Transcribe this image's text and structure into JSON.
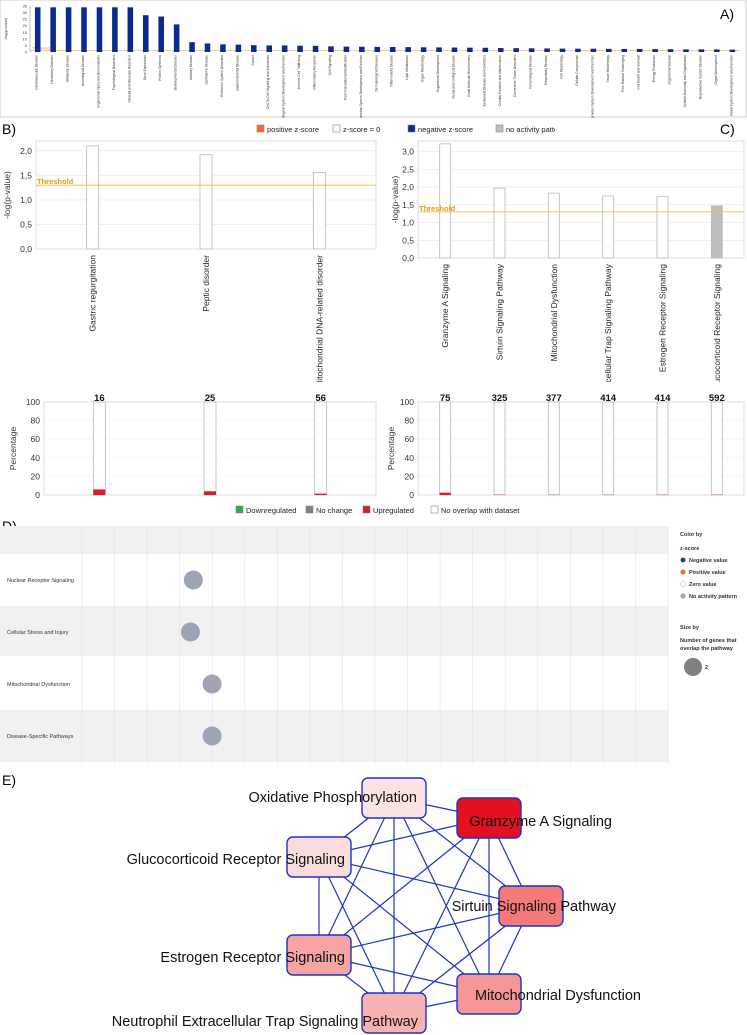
{
  "panel_labels": {
    "a": "A)",
    "b": "B)",
    "c": "C)",
    "d": "D)",
    "e": "E)"
  },
  "chart_data": [
    {
      "id": "A",
      "type": "bar",
      "ylabel": "-log(p-value)",
      "ylim": [
        0,
        35
      ],
      "yticks": [
        "35",
        "30",
        "25",
        "20",
        "15",
        "10",
        "5",
        "0"
      ],
      "threshold_label": "Threshold",
      "threshold": 1.3,
      "bar_color": "#0b2a8f",
      "categories": [
        "Cardiovascular Disease",
        "Hereditary Disorder",
        "Metabolic Disease",
        "Neurological Disease",
        "Organismal Injury and Abnormalities",
        "Psychological Disorders",
        "Skeletal and Muscular Disorders",
        "Gene Expression",
        "Protein Synthesis",
        "Developmental Disorder",
        "Auditory Disease",
        "Ophthalmic Disease",
        "Endocrine System Disorders",
        "Gastrointestinal Disease",
        "Cancer",
        "Cell-To-Cell Signaling and Interaction",
        "Hematological System Development and Function",
        "Immune Cell Trafficking",
        "Inflammatory Response",
        "Cell Signaling",
        "Post-Translational Modification",
        "Cardiovascular System Development and Function",
        "Dermatological Diseases",
        "Inflammatory Disease",
        "Lipid Metabolism",
        "Organ Morphology",
        "Organismal Development",
        "Renal and Urological Disease",
        "Small Molecule Biochemistry",
        "Behavioral Disease and Conditions",
        "Cellular Function and Maintenance",
        "Connective Tissue Disorders",
        "Immunological Disease",
        "Respiratory Disease",
        "Cell Morphology",
        "Cellular Compromise",
        "Nervous System Development and Function",
        "Tissue Morphology",
        "Free Radical Scavenging",
        "Cell Death and Survival",
        "Energy Production",
        "Organismal Survival",
        "Cellular Assembly and Organization",
        "Reproductive System Disease",
        "Organ Development",
        "Visual System Development and Function"
      ],
      "values": [
        34,
        34,
        34,
        34,
        34,
        34,
        34,
        28,
        27,
        21,
        7.5,
        6.5,
        5.8,
        5.6,
        5.2,
        5.0,
        5.0,
        4.8,
        4.7,
        4.3,
        4.1,
        4.0,
        3.9,
        3.8,
        3.7,
        3.6,
        3.5,
        3.4,
        3.3,
        3.2,
        3.0,
        2.9,
        2.8,
        2.7,
        2.6,
        2.5,
        2.5,
        2.4,
        2.3,
        2.3,
        2.2,
        2.1,
        2.0,
        2.0,
        1.9,
        1.8
      ]
    },
    {
      "id": "B",
      "type": "bar",
      "ylabel": "-log(p-value)",
      "ylim": [
        0,
        2.2
      ],
      "yticks": [
        "0,0",
        "0,5",
        "1,0",
        "1,5",
        "2,0"
      ],
      "threshold": 1.3,
      "threshold_label": "Threshold",
      "categories": [
        "Gastric regurgitation",
        "Peptic disorder",
        "Mitochondrial DNA-related disorder"
      ],
      "values": [
        2.1,
        1.92,
        1.56
      ],
      "series_pattern": [
        "zero",
        "zero",
        "zero"
      ]
    },
    {
      "id": "C",
      "type": "bar",
      "ylabel": "-log(p-value)",
      "ylim": [
        0,
        3.3
      ],
      "yticks": [
        "0,0",
        "0,5",
        "1,0",
        "1,5",
        "2,0",
        "2,5",
        "3,0"
      ],
      "threshold": 1.3,
      "threshold_label": "Threshold",
      "categories": [
        "Granzyme A Signaling",
        "Sirtuin Signaling Pathway",
        "Mitochondrial Dysfunction",
        "Neutrophil Extracellular Trap Signaling Pathway",
        "Estrogen Receptor Signaling",
        "Glucocorticoid Receptor Signaling"
      ],
      "values": [
        3.22,
        1.97,
        1.83,
        1.75,
        1.74,
        1.47
      ],
      "series_pattern": [
        "zero",
        "zero",
        "zero",
        "zero",
        "zero",
        "none"
      ]
    },
    {
      "id": "B2",
      "type": "bar",
      "ylabel": "Percentage",
      "ylim": [
        0,
        100
      ],
      "yticks": [
        "0",
        "20",
        "40",
        "60",
        "80",
        "100"
      ],
      "categories": [
        "Gastric regurgitation",
        "Peptic disorder",
        "Mitochondrial DNA-related disorder"
      ],
      "totals": [
        "16",
        "25",
        "56"
      ],
      "upregulated_pct": [
        6,
        4,
        1.5
      ],
      "downregulated_pct": [
        0,
        0,
        0
      ]
    },
    {
      "id": "C2",
      "type": "bar",
      "ylabel": "Percentage",
      "ylim": [
        0,
        100
      ],
      "yticks": [
        "0",
        "20",
        "40",
        "60",
        "80",
        "100"
      ],
      "categories": [
        "Granzyme A Signaling",
        "Sirtuin Signaling Pathway",
        "Mitochondrial Dysfunction",
        "Neutrophil Extracellular Trap Signaling Pathway",
        "Estrogen Receptor Signaling",
        "Glucocorticoid Receptor Signaling"
      ],
      "totals": [
        "75",
        "325",
        "377",
        "414",
        "414",
        "592"
      ],
      "upregulated_pct": [
        2.5,
        0.4,
        0.3,
        0.3,
        0.3,
        0.3
      ],
      "downregulated_pct": [
        0,
        0,
        0,
        0,
        0,
        0
      ]
    },
    {
      "id": "D",
      "type": "scatter",
      "categories": [
        "Nuclear Receptor Signaling",
        "Cellular Stress and Injury",
        "Mitochondrial Dysfunction",
        "Disease-Specific Pathways"
      ],
      "x": [
        0.19,
        0.185,
        0.222,
        0.222
      ],
      "size": [
        2,
        2,
        2,
        2
      ],
      "pattern": [
        "none",
        "none",
        "none",
        "none"
      ]
    }
  ],
  "legend_top": {
    "items": [
      {
        "label": "positive z-score",
        "color": "#f26b21"
      },
      {
        "label": "z-score = 0",
        "color": "#ffffff"
      },
      {
        "label": "negative z-score",
        "color": "#0b2a8f"
      },
      {
        "label": "no activity pattern available",
        "color": "#bdbdbd"
      }
    ]
  },
  "legend_bottom": {
    "items": [
      {
        "label": "Downregulated",
        "color": "#22b14c"
      },
      {
        "label": "No change",
        "color": "#808080"
      },
      {
        "label": "Upregulated",
        "color": "#d91a2a"
      },
      {
        "label": "No overlap with dataset",
        "color": "#ffffff"
      }
    ]
  },
  "legend_d": {
    "color_by": "Color by",
    "zscore": "z-score",
    "items": [
      {
        "label": "Negative value",
        "color": "#1f3a93"
      },
      {
        "label": "Positive value",
        "color": "#f26b21"
      },
      {
        "label": "Zero value",
        "color": "#ffffff"
      },
      {
        "label": "No activity pattern",
        "color": "#9ea3b5"
      }
    ],
    "size_by": "Size by",
    "size_desc_1": "Number of genes that",
    "size_desc_2": "overlap the pathway",
    "size_value": "2"
  },
  "network": {
    "nodes": [
      {
        "label": "Oxidative Phosphorylation",
        "fill": "#fde3e3"
      },
      {
        "label": "Granzyme A Signaling",
        "fill": "#e3101e"
      },
      {
        "label": "Glucocorticoid Receptor Signaling",
        "fill": "#fbdcdc"
      },
      {
        "label": "Sirtuin Signaling Pathway",
        "fill": "#f47a78"
      },
      {
        "label": "Estrogen Receptor Signaling",
        "fill": "#f6a4a3"
      },
      {
        "label": "Mitochondrial Dysfunction",
        "fill": "#f49695"
      },
      {
        "label": "Neutrophil Extracellular Trap Signaling Pathway",
        "fill": "#f7b2b1"
      }
    ],
    "edge_color": "#1a33c8"
  }
}
